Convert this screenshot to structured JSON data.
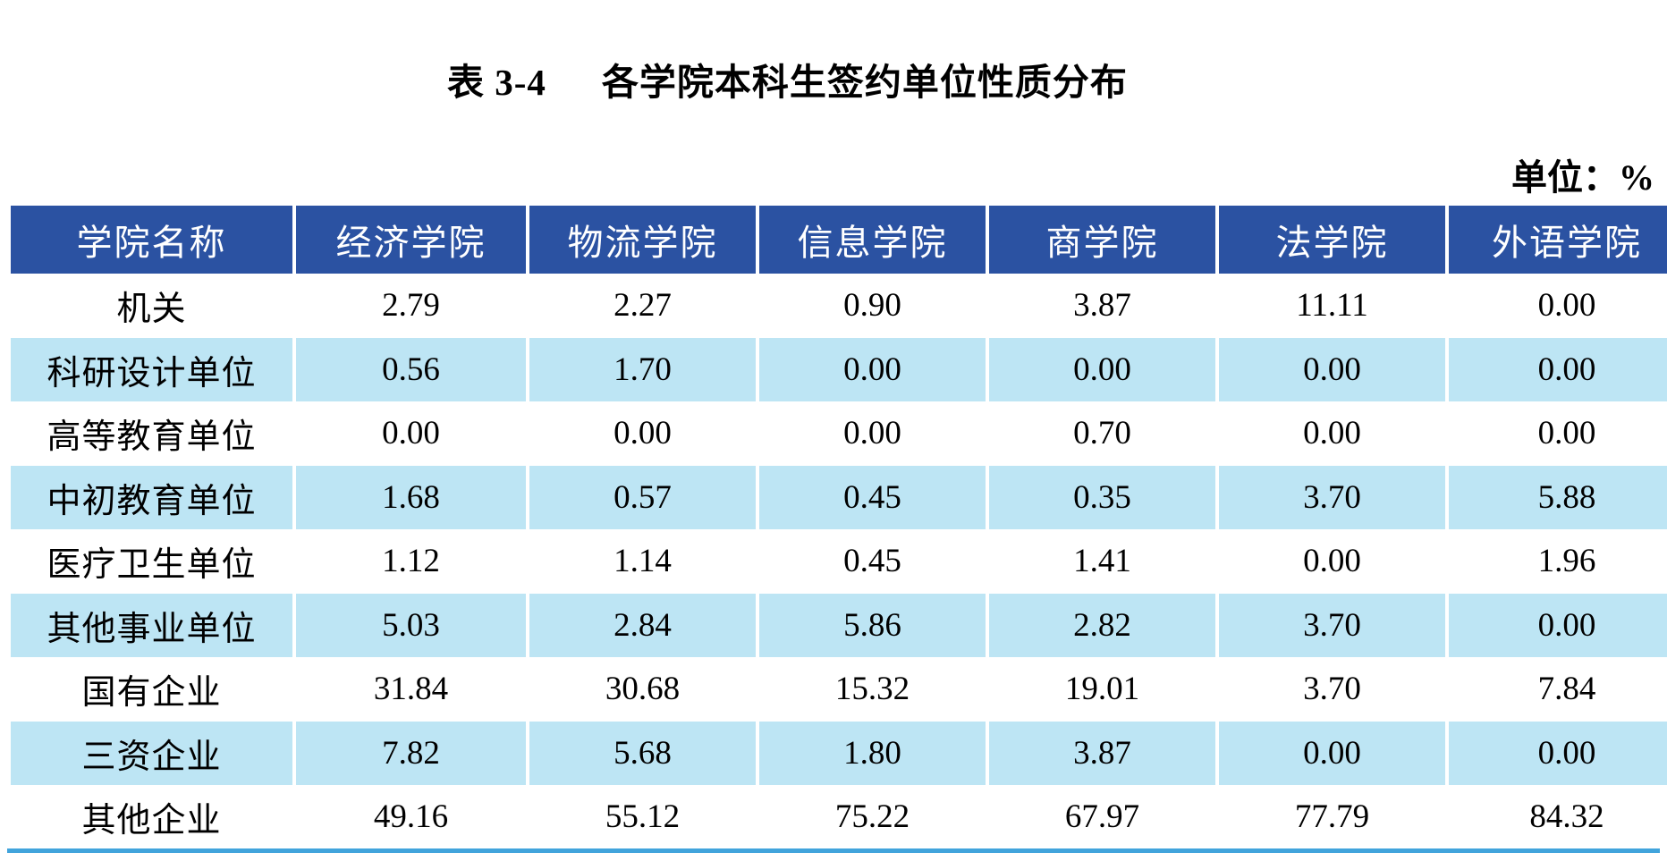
{
  "page": {
    "table_label": "表 3-4",
    "title": "各学院本科生签约单位性质分布",
    "unit_label": "单位：%"
  },
  "colors": {
    "header_bg": "#2B52A2",
    "header_text": "#FFFFFF",
    "stripe_bg": "#BDE5F4",
    "bottom_rule": "#41A4DC",
    "body_text": "#000000"
  },
  "chart_data": {
    "type": "table",
    "title": "表 3-4 各学院本科生签约单位性质分布",
    "unit": "%",
    "columns": [
      "学院名称",
      "经济学院",
      "物流学院",
      "信息学院",
      "商学院",
      "法学院",
      "外语学院"
    ],
    "rows": [
      {
        "label": "机关",
        "values": [
          "2.79",
          "2.27",
          "0.90",
          "3.87",
          "11.11",
          "0.00"
        ]
      },
      {
        "label": "科研设计单位",
        "values": [
          "0.56",
          "1.70",
          "0.00",
          "0.00",
          "0.00",
          "0.00"
        ]
      },
      {
        "label": "高等教育单位",
        "values": [
          "0.00",
          "0.00",
          "0.00",
          "0.70",
          "0.00",
          "0.00"
        ]
      },
      {
        "label": "中初教育单位",
        "values": [
          "1.68",
          "0.57",
          "0.45",
          "0.35",
          "3.70",
          "5.88"
        ]
      },
      {
        "label": "医疗卫生单位",
        "values": [
          "1.12",
          "1.14",
          "0.45",
          "1.41",
          "0.00",
          "1.96"
        ]
      },
      {
        "label": "其他事业单位",
        "values": [
          "5.03",
          "2.84",
          "5.86",
          "2.82",
          "3.70",
          "0.00"
        ]
      },
      {
        "label": "国有企业",
        "values": [
          "31.84",
          "30.68",
          "15.32",
          "19.01",
          "3.70",
          "7.84"
        ]
      },
      {
        "label": "三资企业",
        "values": [
          "7.82",
          "5.68",
          "1.80",
          "3.87",
          "0.00",
          "0.00"
        ]
      },
      {
        "label": "其他企业",
        "values": [
          "49.16",
          "55.12",
          "75.22",
          "67.97",
          "77.79",
          "84.32"
        ]
      }
    ]
  }
}
